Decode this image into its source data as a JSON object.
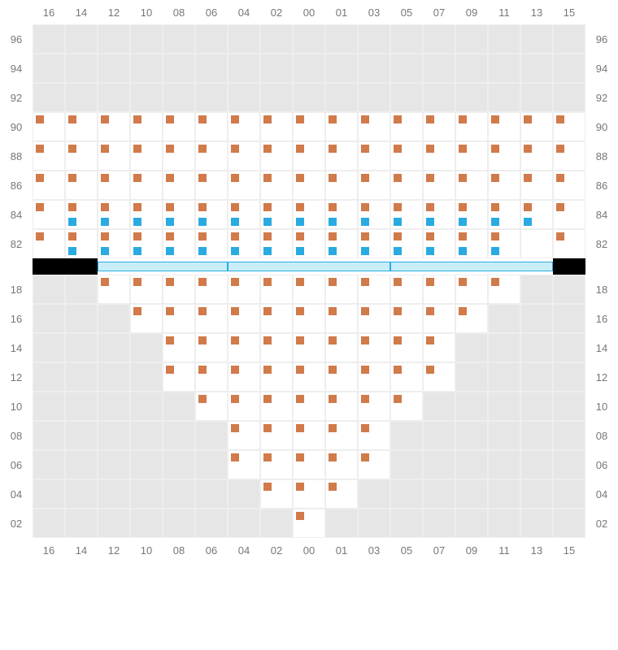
{
  "columns": [
    "16",
    "14",
    "12",
    "10",
    "08",
    "06",
    "04",
    "02",
    "00",
    "01",
    "03",
    "05",
    "07",
    "09",
    "11",
    "13",
    "15"
  ],
  "topRows": [
    {
      "label": "96",
      "cells": [
        "e",
        "e",
        "e",
        "e",
        "e",
        "e",
        "e",
        "e",
        "e",
        "e",
        "e",
        "e",
        "e",
        "e",
        "e",
        "e",
        "e"
      ]
    },
    {
      "label": "94",
      "cells": [
        "e",
        "e",
        "e",
        "e",
        "e",
        "e",
        "e",
        "e",
        "e",
        "e",
        "e",
        "e",
        "e",
        "e",
        "e",
        "e",
        "e"
      ]
    },
    {
      "label": "92",
      "cells": [
        "e",
        "e",
        "e",
        "e",
        "e",
        "e",
        "e",
        "e",
        "e",
        "e",
        "e",
        "e",
        "e",
        "e",
        "e",
        "e",
        "e"
      ]
    },
    {
      "label": "90",
      "cells": [
        "o",
        "o",
        "o",
        "o",
        "o",
        "o",
        "o",
        "o",
        "o",
        "o",
        "o",
        "o",
        "o",
        "o",
        "o",
        "o",
        "o"
      ]
    },
    {
      "label": "88",
      "cells": [
        "o",
        "o",
        "o",
        "o",
        "o",
        "o",
        "o",
        "o",
        "o",
        "o",
        "o",
        "o",
        "o",
        "o",
        "o",
        "o",
        "o"
      ]
    },
    {
      "label": "86",
      "cells": [
        "o",
        "o",
        "o",
        "o",
        "o",
        "o",
        "o",
        "o",
        "o",
        "o",
        "o",
        "o",
        "o",
        "o",
        "o",
        "o",
        "o"
      ]
    },
    {
      "label": "84",
      "cells": [
        "o",
        "ob",
        "ob",
        "ob",
        "ob",
        "ob",
        "ob",
        "ob",
        "ob",
        "ob",
        "ob",
        "ob",
        "ob",
        "ob",
        "ob",
        "ob",
        "o"
      ]
    },
    {
      "label": "82",
      "cells": [
        "o",
        "ob",
        "ob",
        "ob",
        "ob",
        "ob",
        "ob",
        "ob",
        "ob",
        "ob",
        "ob",
        "ob",
        "ob",
        "ob",
        "ob",
        "s",
        "o"
      ]
    }
  ],
  "bottomRows": [
    {
      "label": "18",
      "cells": [
        "e",
        "e",
        "o",
        "o",
        "o",
        "o",
        "o",
        "o",
        "o",
        "o",
        "o",
        "o",
        "o",
        "o",
        "o",
        "e",
        "e"
      ]
    },
    {
      "label": "16",
      "cells": [
        "e",
        "e",
        "e",
        "o",
        "o",
        "o",
        "o",
        "o",
        "o",
        "o",
        "o",
        "o",
        "o",
        "o",
        "e",
        "e",
        "e"
      ]
    },
    {
      "label": "14",
      "cells": [
        "e",
        "e",
        "e",
        "e",
        "o",
        "o",
        "o",
        "o",
        "o",
        "o",
        "o",
        "o",
        "o",
        "e",
        "e",
        "e",
        "e"
      ]
    },
    {
      "label": "12",
      "cells": [
        "e",
        "e",
        "e",
        "e",
        "o",
        "o",
        "o",
        "o",
        "o",
        "o",
        "o",
        "o",
        "o",
        "e",
        "e",
        "e",
        "e"
      ]
    },
    {
      "label": "10",
      "cells": [
        "e",
        "e",
        "e",
        "e",
        "e",
        "o",
        "o",
        "o",
        "o",
        "o",
        "o",
        "o",
        "e",
        "e",
        "e",
        "e",
        "e"
      ]
    },
    {
      "label": "08",
      "cells": [
        "e",
        "e",
        "e",
        "e",
        "e",
        "e",
        "o",
        "o",
        "o",
        "o",
        "o",
        "e",
        "e",
        "e",
        "e",
        "e",
        "e"
      ]
    },
    {
      "label": "06",
      "cells": [
        "e",
        "e",
        "e",
        "e",
        "e",
        "e",
        "o",
        "o",
        "o",
        "o",
        "o",
        "e",
        "e",
        "e",
        "e",
        "e",
        "e"
      ]
    },
    {
      "label": "04",
      "cells": [
        "e",
        "e",
        "e",
        "e",
        "e",
        "e",
        "e",
        "o",
        "o",
        "o",
        "e",
        "e",
        "e",
        "e",
        "e",
        "e",
        "e"
      ]
    },
    {
      "label": "02",
      "cells": [
        "e",
        "e",
        "e",
        "e",
        "e",
        "e",
        "e",
        "e",
        "o",
        "e",
        "e",
        "e",
        "e",
        "e",
        "e",
        "e",
        "e"
      ]
    }
  ],
  "colors": {
    "orange": "#d17a4a",
    "blue": "#29abe2",
    "empty": "#e6e6e6",
    "grid": "#eeeeee",
    "barFill": "#c9edf7"
  },
  "stage": {
    "leftBlackCols": 2,
    "barCols": [
      4,
      5,
      5
    ],
    "rightBlackCols": 1
  }
}
